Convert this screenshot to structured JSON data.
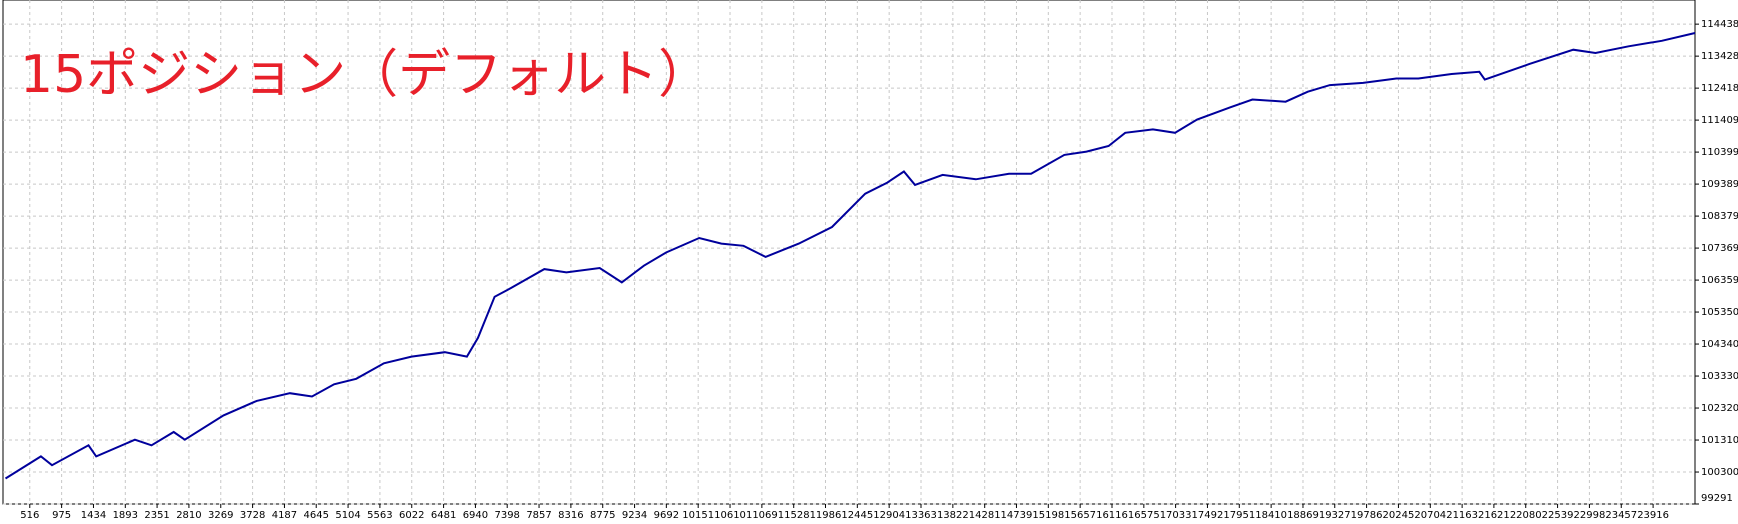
{
  "chart_data": {
    "type": "line",
    "title": "15ポジション（デフォルト）",
    "x": [
      166,
      676,
      836,
      1362,
      1474,
      2032,
      2271,
      2591,
      2750,
      3308,
      3787,
      4266,
      4584,
      4903,
      5222,
      5621,
      6019,
      6498,
      6817,
      6977,
      7216,
      7455,
      7933,
      8252,
      8731,
      9050,
      9369,
      9688,
      10166,
      10485,
      10804,
      11123,
      11601,
      12080,
      12558,
      12877,
      13116,
      13276,
      13674,
      14153,
      14631,
      14950,
      15429,
      15748,
      16067,
      16306,
      16705,
      17024,
      17343,
      17821,
      18140,
      18619,
      18938,
      19257,
      19735,
      20214,
      20533,
      21011,
      21410,
      21490,
      22128,
      22766,
      23085,
      23563,
      24042,
      24520
    ],
    "series": [
      {
        "color": "#00009c",
        "values": [
          100096,
          100795,
          100515,
          101145,
          100795,
          101320,
          101145,
          101565,
          101320,
          102089,
          102544,
          102789,
          102684,
          103069,
          103244,
          103733,
          103943,
          104083,
          103943,
          104538,
          105832,
          106112,
          106707,
          106602,
          106742,
          106287,
          106812,
          107231,
          107686,
          107511,
          107441,
          107091,
          107511,
          108036,
          109085,
          109435,
          109785,
          109365,
          109680,
          109540,
          109715,
          109715,
          110310,
          110415,
          110590,
          111009,
          111114,
          111009,
          111429,
          111814,
          112059,
          111989,
          112304,
          112514,
          112583,
          112723,
          112723,
          112863,
          112933,
          112688,
          113178,
          113632,
          113527,
          113737,
          113912,
          114157
        ]
      }
    ],
    "xlim": [
      130,
      24520
    ],
    "ylim": [
      99291,
      115200
    ],
    "xticks": [
      516,
      975,
      1434,
      1893,
      2351,
      2810,
      3269,
      3728,
      4187,
      4645,
      5104,
      5563,
      6022,
      6481,
      6940,
      7398,
      7857,
      8316,
      8775,
      9234,
      9692,
      10151,
      10610,
      11069,
      11528,
      11986,
      12445,
      12904,
      13363,
      13822,
      14281,
      14739,
      15198,
      15657,
      16116,
      16575,
      17033,
      17492,
      17951,
      18410,
      18869,
      19327,
      19786,
      20245,
      20704,
      21163,
      21621,
      22080,
      22539,
      22998,
      23457,
      23916
    ],
    "yticks": [
      99291,
      100300,
      101310,
      102320,
      103330,
      104340,
      105350,
      106359,
      107369,
      108379,
      109389,
      110399,
      111409,
      112418,
      113428,
      114438
    ],
    "grid": true
  }
}
